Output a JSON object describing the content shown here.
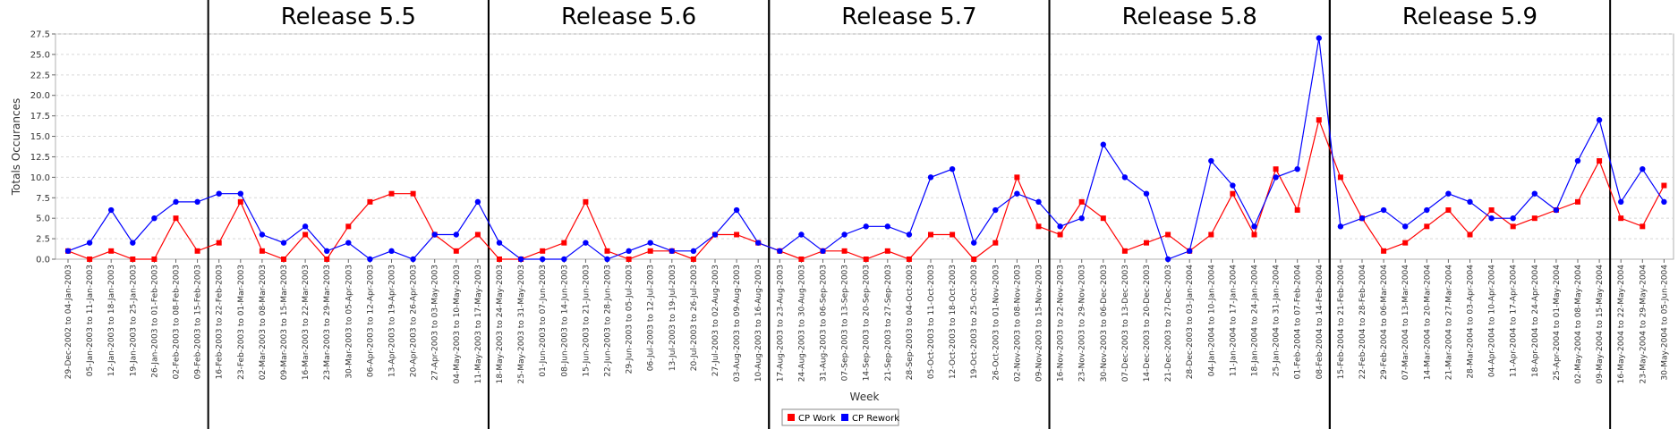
{
  "chart_data": {
    "type": "line",
    "xlabel": "Week",
    "ylabel": "Totals Occurances",
    "ylim": [
      0,
      27.5
    ],
    "yticks": [
      0.0,
      2.5,
      5.0,
      7.5,
      10.0,
      12.5,
      15.0,
      17.5,
      20.0,
      22.5,
      25.0,
      27.5
    ],
    "grid": "horizontal dashed",
    "legend_position": "bottom-center",
    "categories": [
      "29-Dec-2002 to 04-Jan-2003",
      "05-Jan-2003 to 11-Jan-2003",
      "12-Jan-2003 to 18-Jan-2003",
      "19-Jan-2003 to 25-Jan-2003",
      "26-Jan-2003 to 01-Feb-2003",
      "02-Feb-2003 to 08-Feb-2003",
      "09-Feb-2003 to 15-Feb-2003",
      "16-Feb-2003 to 22-Feb-2003",
      "23-Feb-2003 to 01-Mar-2003",
      "02-Mar-2003 to 08-Mar-2003",
      "09-Mar-2003 to 15-Mar-2003",
      "16-Mar-2003 to 22-Mar-2003",
      "23-Mar-2003 to 29-Mar-2003",
      "30-Mar-2003 to 05-Apr-2003",
      "06-Apr-2003 to 12-Apr-2003",
      "13-Apr-2003 to 19-Apr-2003",
      "20-Apr-2003 to 26-Apr-2003",
      "27-Apr-2003 to 03-May-2003",
      "04-May-2003 to 10-May-2003",
      "11-May-2003 to 17-May-2003",
      "18-May-2003 to 24-May-2003",
      "25-May-2003 to 31-May-2003",
      "01-Jun-2003 to 07-Jun-2003",
      "08-Jun-2003 to 14-Jun-2003",
      "15-Jun-2003 to 21-Jun-2003",
      "22-Jun-2003 to 28-Jun-2003",
      "29-Jun-2003 to 05-Jul-2003",
      "06-Jul-2003 to 12-Jul-2003",
      "13-Jul-2003 to 19-Jul-2003",
      "20-Jul-2003 to 26-Jul-2003",
      "27-Jul-2003 to 02-Aug-2003",
      "03-Aug-2003 to 09-Aug-2003",
      "10-Aug-2003 to 16-Aug-2003",
      "17-Aug-2003 to 23-Aug-2003",
      "24-Aug-2003 to 30-Aug-2003",
      "31-Aug-2003 to 06-Sep-2003",
      "07-Sep-2003 to 13-Sep-2003",
      "14-Sep-2003 to 20-Sep-2003",
      "21-Sep-2003 to 27-Sep-2003",
      "28-Sep-2003 to 04-Oct-2003",
      "05-Oct-2003 to 11-Oct-2003",
      "12-Oct-2003 to 18-Oct-2003",
      "19-Oct-2003 to 25-Oct-2003",
      "26-Oct-2003 to 01-Nov-2003",
      "02-Nov-2003 to 08-Nov-2003",
      "09-Nov-2003 to 15-Nov-2003",
      "16-Nov-2003 to 22-Nov-2003",
      "23-Nov-2003 to 29-Nov-2003",
      "30-Nov-2003 to 06-Dec-2003",
      "07-Dec-2003 to 13-Dec-2003",
      "14-Dec-2003 to 20-Dec-2003",
      "21-Dec-2003 to 27-Dec-2003",
      "28-Dec-2003 to 03-Jan-2004",
      "04-Jan-2004 to 10-Jan-2004",
      "11-Jan-2004 to 17-Jan-2004",
      "18-Jan-2004 to 24-Jan-2004",
      "25-Jan-2004 to 31-Jan-2004",
      "01-Feb-2004 to 07-Feb-2004",
      "08-Feb-2004 to 14-Feb-2004",
      "15-Feb-2004 to 21-Feb-2004",
      "22-Feb-2004 to 28-Feb-2004",
      "29-Feb-2004 to 06-Mar-2004",
      "07-Mar-2004 to 13-Mar-2004",
      "14-Mar-2004 to 20-Mar-2004",
      "21-Mar-2004 to 27-Mar-2004",
      "28-Mar-2004 to 03-Apr-2004",
      "04-Apr-2004 to 10-Apr-2004",
      "11-Apr-2004 to 17-Apr-2004",
      "18-Apr-2004 to 24-Apr-2004",
      "25-Apr-2004 to 01-May-2004",
      "02-May-2004 to 08-May-2004",
      "09-May-2004 to 15-May-2004",
      "16-May-2004 to 22-May-2004",
      "23-May-2004 to 29-May-2004",
      "30-May-2004 to 05-Jun-2004"
    ],
    "releases": [
      {
        "name": "Release 5.5",
        "start_index": 7,
        "end_index": 19
      },
      {
        "name": "Release 5.6",
        "start_index": 20,
        "end_index": 32
      },
      {
        "name": "Release 5.7",
        "start_index": 33,
        "end_index": 45
      },
      {
        "name": "Release 5.8",
        "start_index": 46,
        "end_index": 58
      },
      {
        "name": "Release 5.9",
        "start_index": 59,
        "end_index": 71
      }
    ],
    "series": [
      {
        "name": "CP Work",
        "color": "#ff0000",
        "marker": "square",
        "values": [
          1,
          0,
          1,
          0,
          0,
          5,
          1,
          2,
          7,
          1,
          0,
          3,
          0,
          4,
          7,
          8,
          8,
          3,
          1,
          3,
          0,
          0,
          1,
          2,
          7,
          1,
          0,
          1,
          1,
          0,
          3,
          3,
          2,
          1,
          0,
          1,
          1,
          0,
          1,
          0,
          3,
          3,
          0,
          2,
          10,
          4,
          3,
          7,
          5,
          1,
          2,
          3,
          1,
          3,
          8,
          3,
          11,
          6,
          17,
          10,
          5,
          1,
          2,
          4,
          6,
          3,
          6,
          4,
          5,
          6,
          7,
          12,
          5,
          4,
          9
        ]
      },
      {
        "name": "CP Rework",
        "color": "#0000ff",
        "marker": "circle",
        "values": [
          1,
          2,
          6,
          2,
          5,
          7,
          7,
          8,
          8,
          3,
          2,
          4,
          1,
          2,
          0,
          1,
          0,
          3,
          3,
          7,
          2,
          0,
          0,
          0,
          2,
          0,
          1,
          2,
          1,
          1,
          3,
          6,
          2,
          1,
          3,
          1,
          3,
          4,
          4,
          3,
          10,
          11,
          2,
          6,
          8,
          7,
          4,
          5,
          14,
          10,
          8,
          0,
          1,
          12,
          9,
          4,
          10,
          11,
          27,
          4,
          5,
          6,
          4,
          6,
          8,
          7,
          5,
          5,
          8,
          6,
          12,
          17,
          7,
          11,
          7
        ]
      }
    ]
  }
}
